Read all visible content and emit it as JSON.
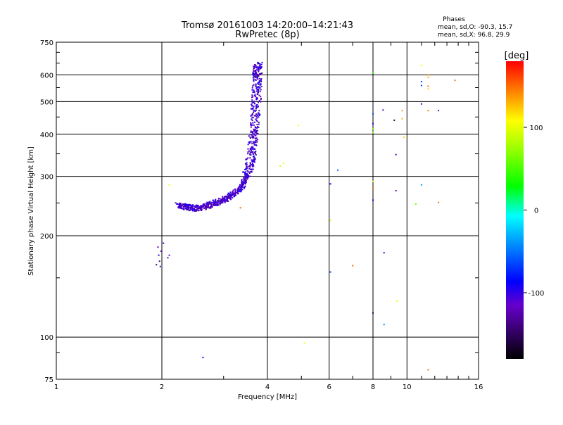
{
  "header": {
    "title": "Tromsø 20161003 14:20:00–14:21:43",
    "subtitle": "RwPretec (8p)"
  },
  "phases": {
    "heading": "Phases",
    "line_o": "mean, sd,O: -90.3, 15.7",
    "line_x": "mean, sd,X:  96.8, 29.9"
  },
  "colorbar": {
    "label": "[deg]",
    "ticks": [
      "100",
      "0",
      "-100"
    ],
    "tick_values": [
      100,
      0,
      -100
    ],
    "range": [
      -180,
      180
    ]
  },
  "chart_data": {
    "type": "scatter",
    "xlabel": "Frequency [MHz]",
    "ylabel": "Stationary phase Virtual Height [km]",
    "x_scale": "log2",
    "y_scale": "log",
    "xlim": [
      1,
      16
    ],
    "ylim": [
      75,
      750
    ],
    "x_ticks": [
      1,
      2,
      4,
      6,
      8,
      10,
      16
    ],
    "x_tick_labels": [
      "1",
      "2",
      "4",
      "6",
      "8",
      "10",
      "16"
    ],
    "y_ticks": [
      75,
      100,
      200,
      300,
      400,
      500,
      600,
      750
    ],
    "y_tick_labels": [
      "75",
      "100",
      "200",
      "300",
      "400",
      "500",
      "600",
      "750"
    ],
    "grid": true,
    "main_trace": {
      "phase_deg": -110,
      "points": [
        [
          2.22,
          246
        ],
        [
          2.3,
          244
        ],
        [
          2.38,
          243
        ],
        [
          2.45,
          242
        ],
        [
          2.52,
          241
        ],
        [
          2.6,
          243
        ],
        [
          2.7,
          245
        ],
        [
          2.8,
          249
        ],
        [
          2.9,
          252
        ],
        [
          3.0,
          256
        ],
        [
          3.1,
          260
        ],
        [
          3.2,
          266
        ],
        [
          3.3,
          273
        ],
        [
          3.4,
          282
        ],
        [
          3.45,
          292
        ],
        [
          3.5,
          305
        ],
        [
          3.55,
          322
        ],
        [
          3.6,
          345
        ],
        [
          3.63,
          370
        ],
        [
          3.66,
          400
        ],
        [
          3.68,
          430
        ],
        [
          3.7,
          470
        ],
        [
          3.72,
          510
        ],
        [
          3.73,
          550
        ],
        [
          3.74,
          590
        ],
        [
          3.75,
          620
        ],
        [
          3.76,
          645
        ]
      ]
    },
    "points": [
      {
        "x": 1.95,
        "y": 185,
        "phase": -120
      },
      {
        "x": 1.96,
        "y": 175,
        "phase": -100
      },
      {
        "x": 1.97,
        "y": 168,
        "phase": -130
      },
      {
        "x": 1.98,
        "y": 162,
        "phase": -110
      },
      {
        "x": 1.99,
        "y": 180,
        "phase": -120
      },
      {
        "x": 2.02,
        "y": 190,
        "phase": -100
      },
      {
        "x": 2.08,
        "y": 172,
        "phase": -120
      },
      {
        "x": 2.1,
        "y": 175,
        "phase": -115
      },
      {
        "x": 1.93,
        "y": 164,
        "phase": -140
      },
      {
        "x": 2.1,
        "y": 283,
        "phase": 110
      },
      {
        "x": 2.62,
        "y": 87,
        "phase": -80
      },
      {
        "x": 3.35,
        "y": 242,
        "phase": 150
      },
      {
        "x": 4.35,
        "y": 322,
        "phase": 90
      },
      {
        "x": 4.45,
        "y": 328,
        "phase": 110
      },
      {
        "x": 4.9,
        "y": 425,
        "phase": 110
      },
      {
        "x": 5.1,
        "y": 96,
        "phase": 110
      },
      {
        "x": 6.05,
        "y": 285,
        "phase": -80
      },
      {
        "x": 6.05,
        "y": 222,
        "phase": 100
      },
      {
        "x": 6.05,
        "y": 156,
        "phase": -60
      },
      {
        "x": 6.35,
        "y": 313,
        "phase": -50
      },
      {
        "x": 7.0,
        "y": 163,
        "phase": 150
      },
      {
        "x": 8.0,
        "y": 610,
        "phase": 40
      },
      {
        "x": 8.0,
        "y": 460,
        "phase": -60
      },
      {
        "x": 8.0,
        "y": 430,
        "phase": -100
      },
      {
        "x": 8.0,
        "y": 415,
        "phase": 60
      },
      {
        "x": 8.0,
        "y": 405,
        "phase": 80
      },
      {
        "x": 8.0,
        "y": 290,
        "phase": 110
      },
      {
        "x": 8.0,
        "y": 278,
        "phase": 150
      },
      {
        "x": 8.0,
        "y": 255,
        "phase": -80
      },
      {
        "x": 8.0,
        "y": 118,
        "phase": -150
      },
      {
        "x": 8.55,
        "y": 472,
        "phase": -110
      },
      {
        "x": 8.6,
        "y": 178,
        "phase": -80
      },
      {
        "x": 8.6,
        "y": 109,
        "phase": -40
      },
      {
        "x": 9.2,
        "y": 440,
        "phase": -160
      },
      {
        "x": 9.3,
        "y": 348,
        "phase": -120
      },
      {
        "x": 9.3,
        "y": 272,
        "phase": -120
      },
      {
        "x": 9.35,
        "y": 128,
        "phase": 110
      },
      {
        "x": 9.7,
        "y": 470,
        "phase": 140
      },
      {
        "x": 9.7,
        "y": 445,
        "phase": 130
      },
      {
        "x": 9.8,
        "y": 392,
        "phase": 120
      },
      {
        "x": 10.6,
        "y": 248,
        "phase": 60
      },
      {
        "x": 11.0,
        "y": 640,
        "phase": 110
      },
      {
        "x": 11.0,
        "y": 573,
        "phase": -60
      },
      {
        "x": 11.0,
        "y": 558,
        "phase": -60
      },
      {
        "x": 11.0,
        "y": 492,
        "phase": -110
      },
      {
        "x": 11.0,
        "y": 283,
        "phase": -40
      },
      {
        "x": 11.5,
        "y": 600,
        "phase": 140
      },
      {
        "x": 11.5,
        "y": 590,
        "phase": 130
      },
      {
        "x": 11.5,
        "y": 555,
        "phase": 150
      },
      {
        "x": 11.5,
        "y": 545,
        "phase": 120
      },
      {
        "x": 11.5,
        "y": 470,
        "phase": 150
      },
      {
        "x": 11.5,
        "y": 80,
        "phase": 150
      },
      {
        "x": 12.3,
        "y": 470,
        "phase": -110
      },
      {
        "x": 12.3,
        "y": 251,
        "phase": 150
      },
      {
        "x": 13.7,
        "y": 578,
        "phase": 150
      }
    ]
  }
}
